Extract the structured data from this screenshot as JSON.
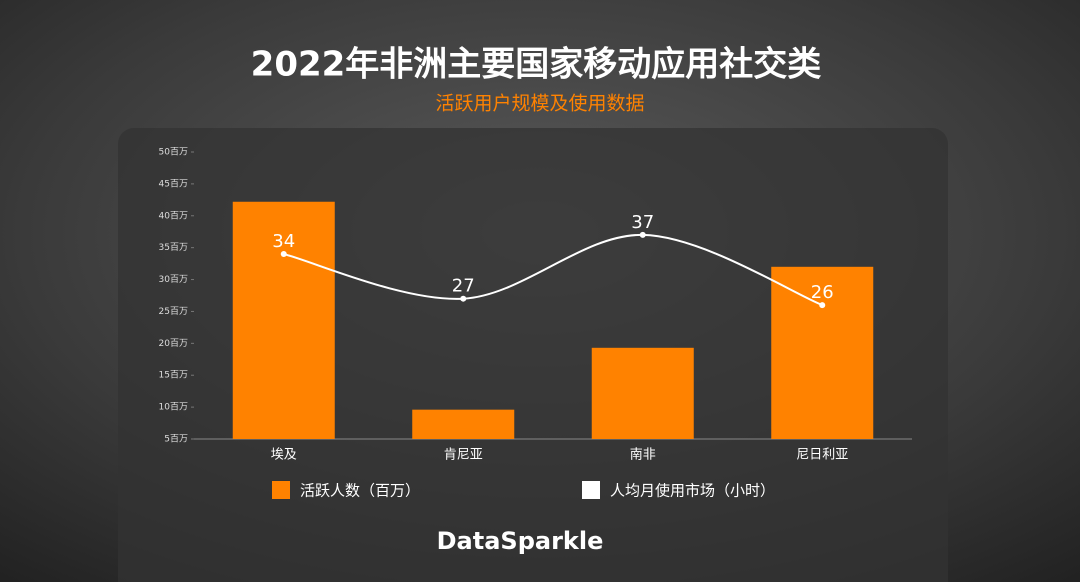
{
  "chart_data": {
    "type": "bar-line",
    "title": "2022年非洲主要国家移动应用社交类",
    "subtitle": "活跃用户规模及使用数据",
    "categories": [
      "埃及",
      "肯尼亚",
      "南非",
      "尼日利亚"
    ],
    "series": [
      {
        "name": "活跃人数（百万）",
        "type": "bar",
        "color": "#ff8200",
        "values": [
          42.2,
          9.6,
          19.3,
          32.0
        ]
      },
      {
        "name": "人均月使用市场（小时）",
        "type": "line",
        "color": "#ffffff",
        "values": [
          34,
          27,
          37,
          26
        ]
      }
    ],
    "ylim": [
      5,
      50
    ],
    "yticks": [
      {
        "value": 5,
        "label": "5百万"
      },
      {
        "value": 10,
        "label": "10百万"
      },
      {
        "value": 15,
        "label": "15百万"
      },
      {
        "value": 20,
        "label": "20百万"
      },
      {
        "value": 25,
        "label": "25百万"
      },
      {
        "value": 30,
        "label": "30百万"
      },
      {
        "value": 35,
        "label": "35百万"
      },
      {
        "value": 40,
        "label": "40百万"
      },
      {
        "value": 45,
        "label": "45百万"
      },
      {
        "value": 50,
        "label": "50百万"
      }
    ],
    "grid": false
  },
  "brand": "DataSparkle"
}
